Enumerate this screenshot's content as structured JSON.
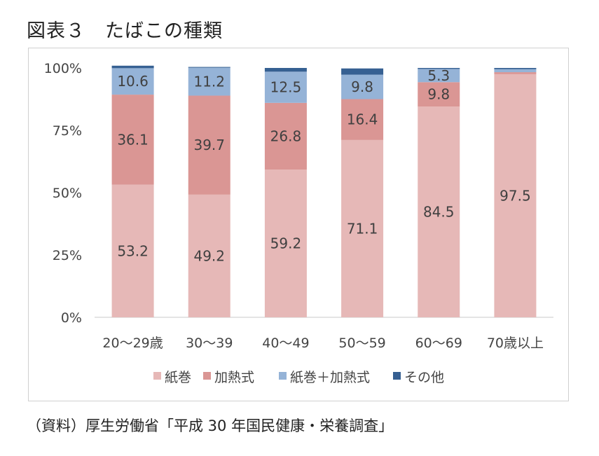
{
  "title": "図表３　たばこの種類",
  "source": "（資料）厚生労働省「平成 30 年国民健康・栄養調査」",
  "chart_data": {
    "type": "bar",
    "stacked": true,
    "percent": true,
    "categories": [
      "20～29歳",
      "30～39",
      "40～49",
      "50～59",
      "60～69",
      "70歳以上"
    ],
    "y_ticks": [
      "0%",
      "25%",
      "50%",
      "75%",
      "100%"
    ],
    "ylim": [
      0,
      100
    ],
    "legend_position": "bottom",
    "series": [
      {
        "name": "紙巻",
        "color": "#e6b8b7",
        "values": [
          53.2,
          49.2,
          59.2,
          71.1,
          84.5,
          97.5
        ],
        "labels": [
          "53.2",
          "49.2",
          "59.2",
          "71.1",
          "84.5",
          "97.5"
        ]
      },
      {
        "name": "加熱式",
        "color": "#da9694",
        "values": [
          36.1,
          39.7,
          26.8,
          16.4,
          9.8,
          0.8
        ],
        "labels": [
          "36.1",
          "39.7",
          "26.8",
          "16.4",
          "9.8",
          ""
        ]
      },
      {
        "name": "紙巻＋加熱式",
        "color": "#95b3d7",
        "values": [
          10.6,
          11.2,
          12.5,
          9.8,
          5.3,
          1.2
        ],
        "labels": [
          "10.6",
          "11.2",
          "12.5",
          "9.8",
          "5.3",
          ""
        ]
      },
      {
        "name": "その他",
        "color": "#366092",
        "values": [
          1.0,
          0.3,
          1.5,
          2.5,
          0.4,
          0.5
        ],
        "labels": [
          "",
          "",
          "",
          "",
          "",
          ""
        ]
      }
    ]
  }
}
